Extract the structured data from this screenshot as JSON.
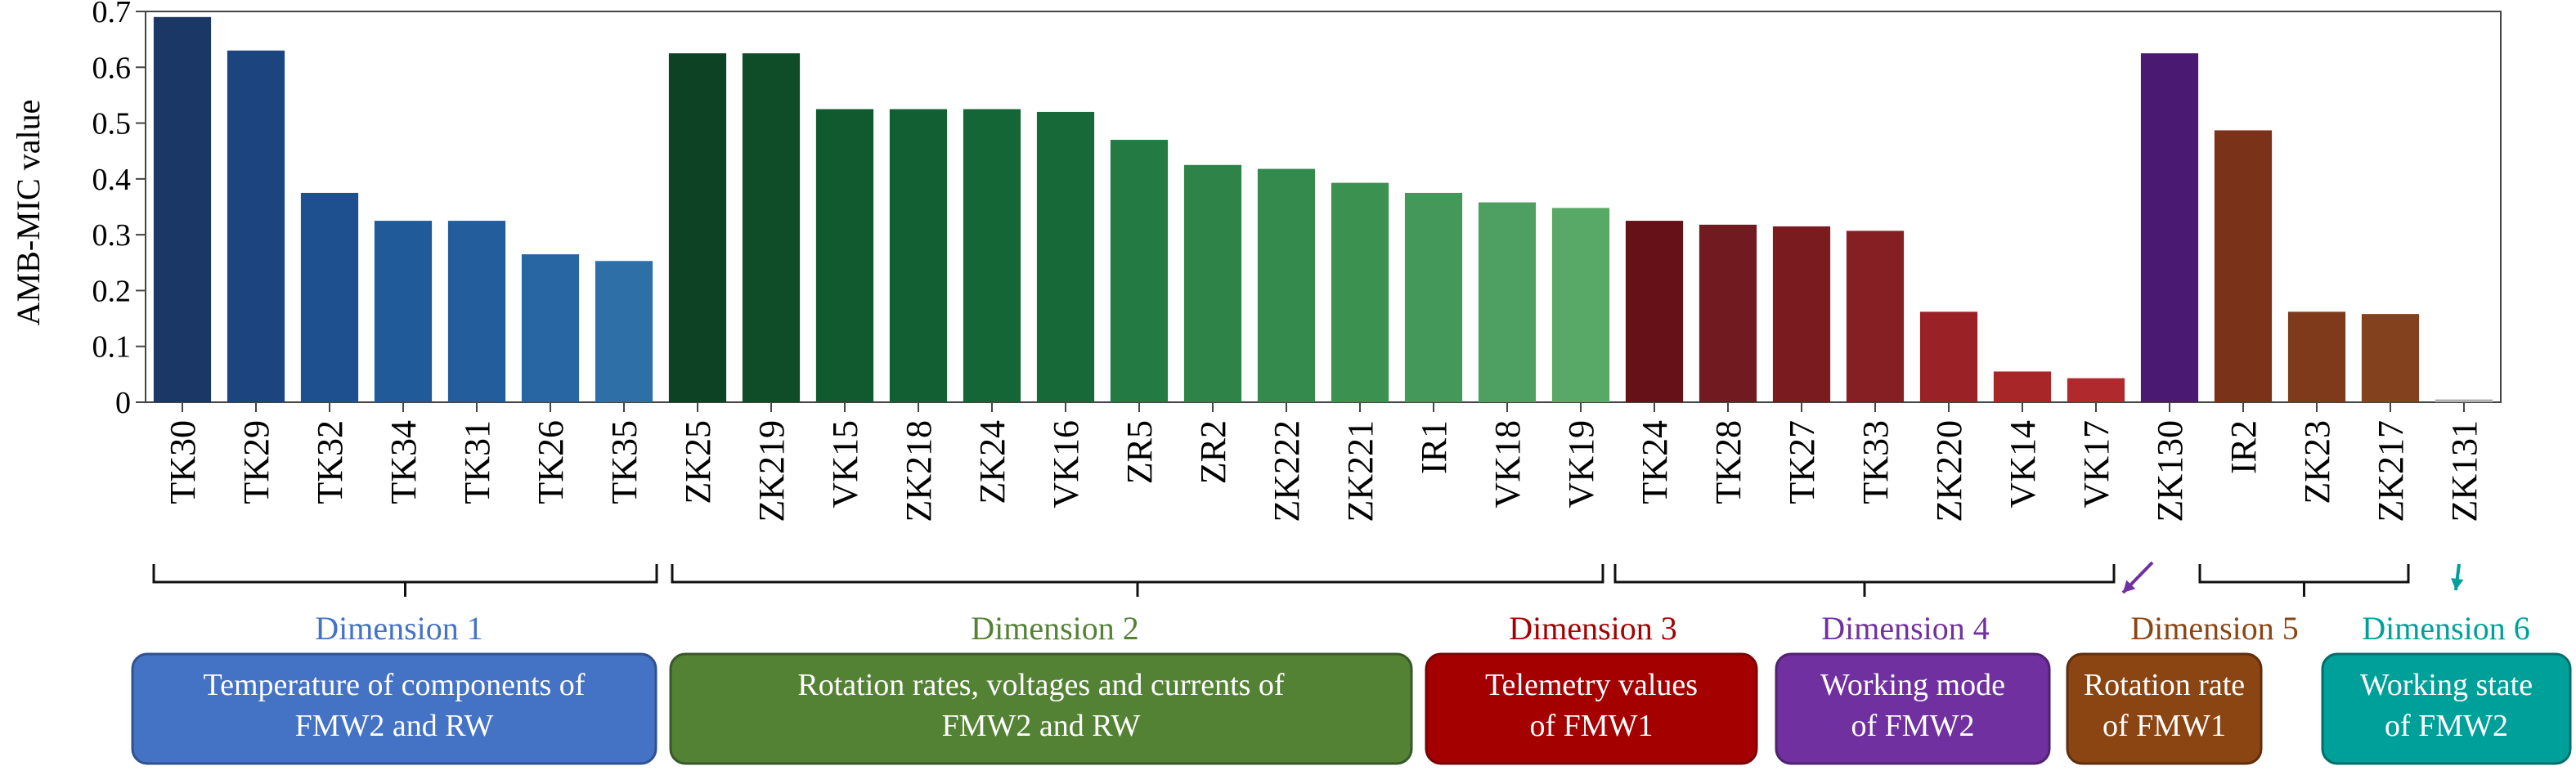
{
  "chart_data": {
    "type": "bar",
    "ylabel": "AMB-MIC value",
    "xlabel": "",
    "ylim": [
      0,
      0.7
    ],
    "yticks": [
      "0",
      "0.1",
      "0.2",
      "0.3",
      "0.4",
      "0.5",
      "0.6",
      "0.7"
    ],
    "categories": [
      "TK30",
      "TK29",
      "TK32",
      "TK34",
      "TK31",
      "TK26",
      "TK35",
      "ZK25",
      "ZK219",
      "VK15",
      "ZK218",
      "ZK24",
      "VK16",
      "ZR5",
      "ZR2",
      "ZK222",
      "ZK221",
      "IR1",
      "VK18",
      "VK19",
      "TK24",
      "TK28",
      "TK27",
      "TK33",
      "ZK220",
      "VK14",
      "VK17",
      "ZK130",
      "IR2",
      "ZK23",
      "ZK217",
      "ZK131"
    ],
    "values": [
      0.69,
      0.63,
      0.375,
      0.325,
      0.325,
      0.265,
      0.253,
      0.625,
      0.625,
      0.525,
      0.525,
      0.525,
      0.52,
      0.47,
      0.425,
      0.418,
      0.393,
      0.375,
      0.358,
      0.348,
      0.325,
      0.318,
      0.315,
      0.307,
      0.162,
      0.055,
      0.043,
      0.625,
      0.487,
      0.162,
      0.158,
      0.005
    ],
    "colors": [
      "#1a3766",
      "#1c4580",
      "#1e5090",
      "#205a98",
      "#235d9c",
      "#2766a3",
      "#2e6fa8",
      "#0d4224",
      "#0e4d28",
      "#115a30",
      "#125f33",
      "#146636",
      "#176a38",
      "#237a42",
      "#2e8448",
      "#348a4c",
      "#3a9150",
      "#44985a",
      "#4ea062",
      "#58a868",
      "#661018",
      "#711a1f",
      "#7a1b20",
      "#861f24",
      "#9a2125",
      "#a82628",
      "#b02a2d",
      "#4a1a72",
      "#7a3318",
      "#7e3a1a",
      "#84411e",
      "#b0b0b0"
    ],
    "groups": [
      {
        "title": "Dimension 1",
        "color": "#4472c4",
        "box_lines": [
          "Temperature of components of",
          "FMW2 and RW"
        ],
        "box_color": "#4472c4",
        "box_border": "#2f528f"
      },
      {
        "title": "Dimension 2",
        "color": "#548235",
        "box_lines": [
          "Rotation rates, voltages and currents of",
          "FMW2 and RW"
        ],
        "box_color": "#548235",
        "box_border": "#38572a"
      },
      {
        "title": "Dimension 3",
        "color": "#a50000",
        "box_lines": [
          "Telemetry values",
          "of FMW1"
        ],
        "box_color": "#a50000",
        "box_border": "#7a0000"
      },
      {
        "title": "Dimension 4",
        "color": "#7030a0",
        "box_lines": [
          "Working mode",
          "of FMW2"
        ],
        "box_color": "#7030a0",
        "box_border": "#4e2270"
      },
      {
        "title": "Dimension 5",
        "color": "#8b4513",
        "box_lines": [
          "Rotation rate",
          "of FMW1"
        ],
        "box_color": "#8b4513",
        "box_border": "#5e2e0d"
      },
      {
        "title": "Dimension 6",
        "color": "#00a09a",
        "box_lines": [
          "Working state",
          "of FMW2"
        ],
        "box_color": "#00a09a",
        "box_border": "#006e6a"
      }
    ]
  }
}
